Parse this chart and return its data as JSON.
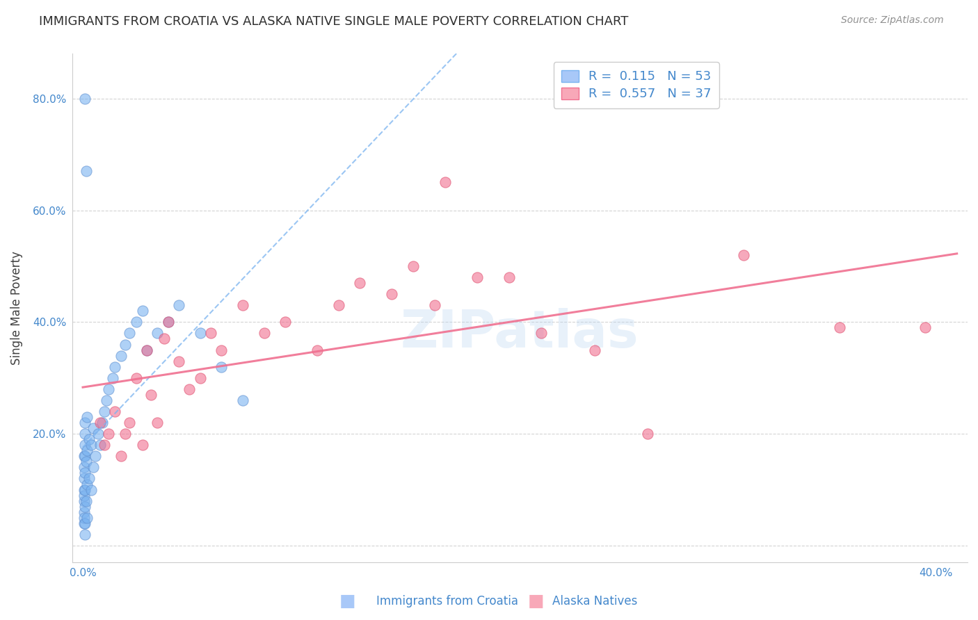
{
  "title": "IMMIGRANTS FROM CROATIA VS ALASKA NATIVE SINGLE MALE POVERTY CORRELATION CHART",
  "source": "Source: ZipAtlas.com",
  "ylabel": "Single Male Poverty",
  "legend_R1": "0.115",
  "legend_N1": "53",
  "legend_R2": "0.557",
  "legend_N2": "37",
  "watermark": "ZIPatlas",
  "series1_color": "#7ab3f0",
  "series2_color": "#f07090",
  "series1_edge": "#6090d0",
  "series2_edge": "#e05070",
  "line1_color": "#7ab3f0",
  "line2_color": "#f07090",
  "background_color": "#ffffff",
  "grid_color": "#d0d0d0",
  "title_color": "#303030",
  "axis_color": "#4488cc",
  "series1_x": [
    0.0005,
    0.0005,
    0.0005,
    0.0005,
    0.0005,
    0.0005,
    0.0005,
    0.0008,
    0.0008,
    0.001,
    0.001,
    0.001,
    0.001,
    0.001,
    0.001,
    0.001,
    0.001,
    0.001,
    0.0015,
    0.0015,
    0.002,
    0.002,
    0.002,
    0.002,
    0.003,
    0.003,
    0.004,
    0.004,
    0.005,
    0.005,
    0.006,
    0.007,
    0.008,
    0.009,
    0.01,
    0.011,
    0.012,
    0.014,
    0.015,
    0.018,
    0.02,
    0.022,
    0.025,
    0.028,
    0.03,
    0.035,
    0.04,
    0.045,
    0.055,
    0.065,
    0.001,
    0.0015,
    0.075
  ],
  "series1_y": [
    0.04,
    0.06,
    0.08,
    0.1,
    0.12,
    0.14,
    0.16,
    0.05,
    0.09,
    0.02,
    0.04,
    0.07,
    0.1,
    0.13,
    0.16,
    0.18,
    0.2,
    0.22,
    0.08,
    0.15,
    0.05,
    0.11,
    0.17,
    0.23,
    0.12,
    0.19,
    0.1,
    0.18,
    0.14,
    0.21,
    0.16,
    0.2,
    0.18,
    0.22,
    0.24,
    0.26,
    0.28,
    0.3,
    0.32,
    0.34,
    0.36,
    0.38,
    0.4,
    0.42,
    0.35,
    0.38,
    0.4,
    0.43,
    0.38,
    0.32,
    0.8,
    0.67,
    0.26
  ],
  "series2_x": [
    0.008,
    0.01,
    0.012,
    0.015,
    0.018,
    0.02,
    0.022,
    0.025,
    0.028,
    0.03,
    0.032,
    0.035,
    0.038,
    0.04,
    0.045,
    0.05,
    0.055,
    0.06,
    0.065,
    0.075,
    0.085,
    0.095,
    0.11,
    0.12,
    0.13,
    0.145,
    0.155,
    0.165,
    0.17,
    0.185,
    0.2,
    0.215,
    0.24,
    0.265,
    0.31,
    0.355,
    0.395
  ],
  "series2_y": [
    0.22,
    0.18,
    0.2,
    0.24,
    0.16,
    0.2,
    0.22,
    0.3,
    0.18,
    0.35,
    0.27,
    0.22,
    0.37,
    0.4,
    0.33,
    0.28,
    0.3,
    0.38,
    0.35,
    0.43,
    0.38,
    0.4,
    0.35,
    0.43,
    0.47,
    0.45,
    0.5,
    0.43,
    0.65,
    0.48,
    0.48,
    0.38,
    0.35,
    0.2,
    0.52,
    0.39,
    0.39
  ]
}
